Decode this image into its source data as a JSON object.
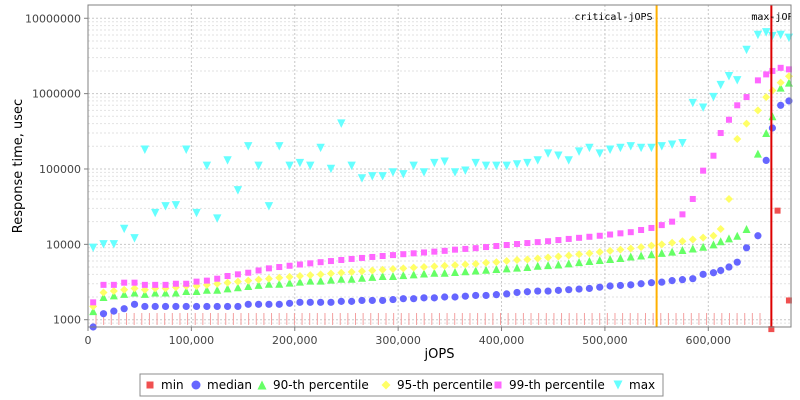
{
  "chart_data": {
    "type": "scatter",
    "xlabel": "jOPS",
    "ylabel": "Response time, usec",
    "y_scale": "log",
    "xlim": [
      0,
      680000
    ],
    "ylim": [
      800,
      15000000
    ],
    "x_ticks": [
      0,
      100000,
      200000,
      300000,
      400000,
      500000,
      600000
    ],
    "x_tick_labels": [
      "0",
      "100,000",
      "200,000",
      "300,000",
      "400,000",
      "500,000",
      "600,000"
    ],
    "y_ticks": [
      1000,
      10000,
      100000,
      1000000,
      10000000
    ],
    "y_tick_labels": [
      "1000",
      "10000",
      "100000",
      "1000000",
      "10000000"
    ],
    "grid": true,
    "legend_position": "bottom",
    "markers": [
      {
        "label": "critical-jOPS",
        "x": 550000,
        "color": "#ffb000"
      },
      {
        "label": "max-jOPS",
        "x": 661000,
        "color": "#dd0000"
      }
    ],
    "series": [
      {
        "name": "min",
        "color": "#f05050",
        "shape": "square",
        "x": [
          661000,
          667000,
          678000
        ],
        "y": [
          750,
          28000,
          1800
        ]
      },
      {
        "name": "median",
        "color": "#6666ff",
        "shape": "circle",
        "x": [
          5000,
          15000,
          25000,
          35000,
          45000,
          55000,
          65000,
          75000,
          85000,
          95000,
          105000,
          115000,
          125000,
          135000,
          145000,
          155000,
          165000,
          175000,
          185000,
          195000,
          205000,
          215000,
          225000,
          235000,
          245000,
          255000,
          265000,
          275000,
          285000,
          295000,
          305000,
          315000,
          325000,
          335000,
          345000,
          355000,
          365000,
          375000,
          385000,
          395000,
          405000,
          415000,
          425000,
          435000,
          445000,
          455000,
          465000,
          475000,
          485000,
          495000,
          505000,
          515000,
          525000,
          535000,
          545000,
          555000,
          565000,
          575000,
          585000,
          595000,
          605000,
          612000,
          620000,
          628000,
          637000,
          648000,
          656000,
          662000,
          670000,
          678000
        ],
        "y": [
          800,
          1200,
          1300,
          1400,
          1600,
          1500,
          1500,
          1500,
          1500,
          1500,
          1500,
          1500,
          1500,
          1500,
          1500,
          1600,
          1600,
          1600,
          1600,
          1650,
          1700,
          1700,
          1700,
          1700,
          1750,
          1750,
          1800,
          1800,
          1800,
          1850,
          1900,
          1900,
          1950,
          1950,
          2000,
          2000,
          2050,
          2100,
          2100,
          2150,
          2200,
          2300,
          2350,
          2400,
          2400,
          2450,
          2500,
          2550,
          2600,
          2700,
          2800,
          2850,
          2900,
          3000,
          3100,
          3150,
          3300,
          3400,
          3500,
          4000,
          4200,
          4500,
          5000,
          5800,
          9000,
          13000,
          130000,
          350000,
          700000,
          800000
        ]
      },
      {
        "name": "90-th percentile",
        "color": "#66ff66",
        "shape": "triangle-up",
        "x": [
          5000,
          15000,
          25000,
          35000,
          45000,
          55000,
          65000,
          75000,
          85000,
          95000,
          105000,
          115000,
          125000,
          135000,
          145000,
          155000,
          165000,
          175000,
          185000,
          195000,
          205000,
          215000,
          225000,
          235000,
          245000,
          255000,
          265000,
          275000,
          285000,
          295000,
          305000,
          315000,
          325000,
          335000,
          345000,
          355000,
          365000,
          375000,
          385000,
          395000,
          405000,
          415000,
          425000,
          435000,
          445000,
          455000,
          465000,
          475000,
          485000,
          495000,
          505000,
          515000,
          525000,
          535000,
          545000,
          555000,
          565000,
          575000,
          585000,
          595000,
          605000,
          612000,
          620000,
          628000,
          637000,
          648000,
          656000,
          662000,
          670000,
          678000
        ],
        "y": [
          1300,
          2000,
          2100,
          2200,
          2300,
          2200,
          2300,
          2300,
          2300,
          2400,
          2400,
          2500,
          2500,
          2600,
          2700,
          2800,
          2900,
          3000,
          3000,
          3100,
          3200,
          3300,
          3300,
          3400,
          3500,
          3500,
          3600,
          3700,
          3800,
          3800,
          3900,
          4000,
          4100,
          4200,
          4200,
          4300,
          4400,
          4500,
          4600,
          4700,
          4800,
          4900,
          5000,
          5200,
          5300,
          5400,
          5600,
          5800,
          6000,
          6200,
          6400,
          6600,
          6900,
          7100,
          7400,
          7700,
          8000,
          8400,
          8800,
          9300,
          10000,
          11000,
          12000,
          13000,
          16000,
          160000,
          300000,
          500000,
          1200000,
          1400000
        ]
      },
      {
        "name": "95-th percentile",
        "color": "#ffff66",
        "shape": "diamond",
        "x": [
          5000,
          15000,
          25000,
          35000,
          45000,
          55000,
          65000,
          75000,
          85000,
          95000,
          105000,
          115000,
          125000,
          135000,
          145000,
          155000,
          165000,
          175000,
          185000,
          195000,
          205000,
          215000,
          225000,
          235000,
          245000,
          255000,
          265000,
          275000,
          285000,
          295000,
          305000,
          315000,
          325000,
          335000,
          345000,
          355000,
          365000,
          375000,
          385000,
          395000,
          405000,
          415000,
          425000,
          435000,
          445000,
          455000,
          465000,
          475000,
          485000,
          495000,
          505000,
          515000,
          525000,
          535000,
          545000,
          555000,
          565000,
          575000,
          585000,
          595000,
          605000,
          612000,
          620000,
          628000,
          637000,
          648000,
          656000,
          662000,
          670000,
          678000
        ],
        "y": [
          1500,
          2300,
          2400,
          2500,
          2600,
          2500,
          2600,
          2600,
          2700,
          2800,
          2800,
          2900,
          3000,
          3100,
          3200,
          3300,
          3400,
          3500,
          3600,
          3700,
          3800,
          3900,
          4000,
          4100,
          4200,
          4300,
          4400,
          4500,
          4600,
          4700,
          4800,
          4900,
          5000,
          5100,
          5200,
          5300,
          5400,
          5500,
          5700,
          5800,
          6000,
          6200,
          6300,
          6500,
          6700,
          6900,
          7100,
          7400,
          7600,
          7900,
          8200,
          8500,
          8800,
          9200,
          9600,
          10000,
          10500,
          11000,
          11600,
          12300,
          13000,
          16000,
          40000,
          250000,
          400000,
          600000,
          900000,
          1100000,
          1400000,
          1700000
        ]
      },
      {
        "name": "99-th percentile",
        "color": "#ff66ff",
        "shape": "square",
        "x": [
          5000,
          15000,
          25000,
          35000,
          45000,
          55000,
          65000,
          75000,
          85000,
          95000,
          105000,
          115000,
          125000,
          135000,
          145000,
          155000,
          165000,
          175000,
          185000,
          195000,
          205000,
          215000,
          225000,
          235000,
          245000,
          255000,
          265000,
          275000,
          285000,
          295000,
          305000,
          315000,
          325000,
          335000,
          345000,
          355000,
          365000,
          375000,
          385000,
          395000,
          405000,
          415000,
          425000,
          435000,
          445000,
          455000,
          465000,
          475000,
          485000,
          495000,
          505000,
          515000,
          525000,
          535000,
          545000,
          555000,
          565000,
          575000,
          585000,
          595000,
          605000,
          612000,
          620000,
          628000,
          637000,
          648000,
          656000,
          662000,
          670000,
          678000
        ],
        "y": [
          1700,
          2900,
          2900,
          3100,
          3100,
          2900,
          2900,
          2900,
          3000,
          3000,
          3200,
          3300,
          3500,
          3800,
          4000,
          4200,
          4500,
          4800,
          5000,
          5200,
          5400,
          5600,
          5800,
          6000,
          6200,
          6400,
          6600,
          6800,
          7000,
          7200,
          7400,
          7600,
          7800,
          8000,
          8200,
          8500,
          8700,
          8900,
          9200,
          9500,
          9800,
          10100,
          10400,
          10700,
          11000,
          11400,
          11800,
          12200,
          12600,
          13000,
          13500,
          14000,
          14500,
          15500,
          16500,
          18000,
          20000,
          25000,
          40000,
          95000,
          150000,
          300000,
          450000,
          700000,
          900000,
          1500000,
          1800000,
          2000000,
          2200000,
          2100000
        ]
      },
      {
        "name": "max",
        "color": "#66ffff",
        "shape": "triangle-down",
        "x": [
          5000,
          15000,
          25000,
          35000,
          45000,
          55000,
          65000,
          75000,
          85000,
          95000,
          105000,
          115000,
          125000,
          135000,
          145000,
          155000,
          165000,
          175000,
          185000,
          195000,
          205000,
          215000,
          225000,
          235000,
          245000,
          255000,
          265000,
          275000,
          285000,
          295000,
          305000,
          315000,
          325000,
          335000,
          345000,
          355000,
          365000,
          375000,
          385000,
          395000,
          405000,
          415000,
          425000,
          435000,
          445000,
          455000,
          465000,
          475000,
          485000,
          495000,
          505000,
          515000,
          525000,
          535000,
          545000,
          555000,
          565000,
          575000,
          585000,
          595000,
          605000,
          612000,
          620000,
          628000,
          637000,
          648000,
          656000,
          662000,
          670000,
          678000
        ],
        "y": [
          9000,
          10000,
          10000,
          16000,
          12000,
          180000,
          26000,
          32000,
          33000,
          180000,
          26000,
          110000,
          22000,
          130000,
          52000,
          200000,
          110000,
          32000,
          200000,
          110000,
          120000,
          110000,
          190000,
          100000,
          400000,
          110000,
          75000,
          80000,
          80000,
          90000,
          85000,
          110000,
          90000,
          120000,
          125000,
          90000,
          95000,
          120000,
          110000,
          110000,
          110000,
          115000,
          120000,
          130000,
          160000,
          150000,
          130000,
          170000,
          190000,
          160000,
          180000,
          190000,
          200000,
          190000,
          190000,
          200000,
          210000,
          220000,
          750000,
          650000,
          900000,
          1300000,
          1700000,
          1500000,
          3800000,
          6000000,
          6500000,
          5800000,
          6000000,
          5500000
        ]
      }
    ]
  }
}
